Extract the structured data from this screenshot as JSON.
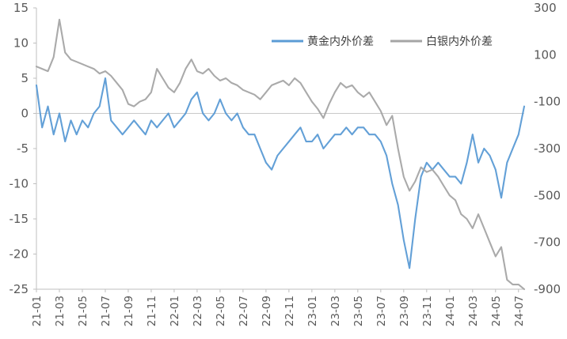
{
  "chart_data": {
    "type": "line",
    "title": "",
    "legend_position": "top-right",
    "x_tick_labels": [
      "21-01",
      "21-03",
      "21-05",
      "21-07",
      "21-09",
      "21-11",
      "22-01",
      "22-03",
      "22-05",
      "22-07",
      "22-09",
      "22-11",
      "23-01",
      "23-03",
      "23-05",
      "23-07",
      "23-09",
      "23-11",
      "24-01",
      "24-03",
      "24-05",
      "24-07"
    ],
    "y_left": {
      "ticks": [
        "15",
        "10",
        "5",
        "0",
        "-5",
        "-10",
        "-15",
        "-20",
        "-25"
      ],
      "ylim": [
        -25,
        15
      ]
    },
    "y_right": {
      "ticks": [
        "300",
        "100",
        "-100",
        "-300",
        "-500",
        "-700",
        "-900"
      ],
      "ylim": [
        -900,
        300
      ]
    },
    "zero_line": true,
    "series": [
      {
        "name": "黄金内外价差",
        "axis": "left",
        "color": "#5B9BD5",
        "points": [
          [
            "21-01",
            4
          ],
          [
            "21-01.5",
            -2
          ],
          [
            "21-02",
            1
          ],
          [
            "21-02.5",
            -3
          ],
          [
            "21-03",
            0
          ],
          [
            "21-03.5",
            -4
          ],
          [
            "21-04",
            -1
          ],
          [
            "21-04.5",
            -3
          ],
          [
            "21-05",
            -1
          ],
          [
            "21-05.5",
            -2
          ],
          [
            "21-06",
            0
          ],
          [
            "21-06.5",
            1
          ],
          [
            "21-07",
            5
          ],
          [
            "21-07.5",
            -1
          ],
          [
            "21-08",
            -2
          ],
          [
            "21-08.5",
            -3
          ],
          [
            "21-09",
            -2
          ],
          [
            "21-09.5",
            -1
          ],
          [
            "21-10",
            -2
          ],
          [
            "21-10.5",
            -3
          ],
          [
            "21-11",
            -1
          ],
          [
            "21-11.5",
            -2
          ],
          [
            "21-12",
            -1
          ],
          [
            "21-12.5",
            0
          ],
          [
            "22-01",
            -2
          ],
          [
            "22-01.5",
            -1
          ],
          [
            "22-02",
            0
          ],
          [
            "22-02.5",
            2
          ],
          [
            "22-03",
            3
          ],
          [
            "22-03.5",
            0
          ],
          [
            "22-04",
            -1
          ],
          [
            "22-04.5",
            0
          ],
          [
            "22-05",
            2
          ],
          [
            "22-05.5",
            0
          ],
          [
            "22-06",
            -1
          ],
          [
            "22-06.5",
            0
          ],
          [
            "22-07",
            -2
          ],
          [
            "22-07.5",
            -3
          ],
          [
            "22-08",
            -3
          ],
          [
            "22-08.5",
            -5
          ],
          [
            "22-09",
            -7
          ],
          [
            "22-09.5",
            -8
          ],
          [
            "22-10",
            -6
          ],
          [
            "22-10.5",
            -5
          ],
          [
            "22-11",
            -4
          ],
          [
            "22-11.5",
            -3
          ],
          [
            "22-12",
            -2
          ],
          [
            "22-12.5",
            -4
          ],
          [
            "23-01",
            -4
          ],
          [
            "23-01.5",
            -3
          ],
          [
            "23-02",
            -5
          ],
          [
            "23-02.5",
            -4
          ],
          [
            "23-03",
            -3
          ],
          [
            "23-03.5",
            -3
          ],
          [
            "23-04",
            -2
          ],
          [
            "23-04.5",
            -3
          ],
          [
            "23-05",
            -2
          ],
          [
            "23-05.5",
            -2
          ],
          [
            "23-06",
            -3
          ],
          [
            "23-06.5",
            -3
          ],
          [
            "23-07",
            -4
          ],
          [
            "23-07.5",
            -6
          ],
          [
            "23-08",
            -10
          ],
          [
            "23-08.5",
            -13
          ],
          [
            "23-09",
            -18
          ],
          [
            "23-09.5",
            -22
          ],
          [
            "23-10",
            -15
          ],
          [
            "23-10.5",
            -9
          ],
          [
            "23-11",
            -7
          ],
          [
            "23-11.5",
            -8
          ],
          [
            "23-12",
            -7
          ],
          [
            "23-12.5",
            -8
          ],
          [
            "24-01",
            -9
          ],
          [
            "24-01.5",
            -9
          ],
          [
            "24-02",
            -10
          ],
          [
            "24-02.5",
            -7
          ],
          [
            "24-03",
            -3
          ],
          [
            "24-03.5",
            -7
          ],
          [
            "24-04",
            -5
          ],
          [
            "24-04.5",
            -6
          ],
          [
            "24-05",
            -8
          ],
          [
            "24-05.5",
            -12
          ],
          [
            "24-06",
            -7
          ],
          [
            "24-06.5",
            -5
          ],
          [
            "24-07",
            -3
          ],
          [
            "24-07.5",
            1
          ]
        ]
      },
      {
        "name": "白银内外价差",
        "axis": "right",
        "color": "#A5A5A5",
        "points": [
          [
            "21-01",
            50
          ],
          [
            "21-01.5",
            40
          ],
          [
            "21-02",
            30
          ],
          [
            "21-02.5",
            90
          ],
          [
            "21-03",
            250
          ],
          [
            "21-03.5",
            110
          ],
          [
            "21-04",
            80
          ],
          [
            "21-04.5",
            70
          ],
          [
            "21-05",
            60
          ],
          [
            "21-05.5",
            50
          ],
          [
            "21-06",
            40
          ],
          [
            "21-06.5",
            20
          ],
          [
            "21-07",
            30
          ],
          [
            "21-07.5",
            10
          ],
          [
            "21-08",
            -20
          ],
          [
            "21-08.5",
            -50
          ],
          [
            "21-09",
            -110
          ],
          [
            "21-09.5",
            -120
          ],
          [
            "21-10",
            -100
          ],
          [
            "21-10.5",
            -90
          ],
          [
            "21-11",
            -60
          ],
          [
            "21-11.5",
            40
          ],
          [
            "21-12",
            0
          ],
          [
            "21-12.5",
            -40
          ],
          [
            "22-01",
            -60
          ],
          [
            "22-01.5",
            -20
          ],
          [
            "22-02",
            40
          ],
          [
            "22-02.5",
            80
          ],
          [
            "22-03",
            30
          ],
          [
            "22-03.5",
            20
          ],
          [
            "22-04",
            40
          ],
          [
            "22-04.5",
            10
          ],
          [
            "22-05",
            -10
          ],
          [
            "22-05.5",
            0
          ],
          [
            "22-06",
            -20
          ],
          [
            "22-06.5",
            -30
          ],
          [
            "22-07",
            -50
          ],
          [
            "22-07.5",
            -60
          ],
          [
            "22-08",
            -70
          ],
          [
            "22-08.5",
            -90
          ],
          [
            "22-09",
            -60
          ],
          [
            "22-09.5",
            -30
          ],
          [
            "22-10",
            -20
          ],
          [
            "22-10.5",
            -10
          ],
          [
            "22-11",
            -30
          ],
          [
            "22-11.5",
            0
          ],
          [
            "22-12",
            -20
          ],
          [
            "22-12.5",
            -60
          ],
          [
            "23-01",
            -100
          ],
          [
            "23-01.5",
            -130
          ],
          [
            "23-02",
            -170
          ],
          [
            "23-02.5",
            -110
          ],
          [
            "23-03",
            -60
          ],
          [
            "23-03.5",
            -20
          ],
          [
            "23-04",
            -40
          ],
          [
            "23-04.5",
            -30
          ],
          [
            "23-05",
            -60
          ],
          [
            "23-05.5",
            -80
          ],
          [
            "23-06",
            -60
          ],
          [
            "23-06.5",
            -100
          ],
          [
            "23-07",
            -140
          ],
          [
            "23-07.5",
            -200
          ],
          [
            "23-08",
            -160
          ],
          [
            "23-08.5",
            -300
          ],
          [
            "23-09",
            -420
          ],
          [
            "23-09.5",
            -480
          ],
          [
            "23-10",
            -440
          ],
          [
            "23-10.5",
            -380
          ],
          [
            "23-11",
            -400
          ],
          [
            "23-11.5",
            -390
          ],
          [
            "23-12",
            -420
          ],
          [
            "23-12.5",
            -460
          ],
          [
            "24-01",
            -500
          ],
          [
            "24-01.5",
            -520
          ],
          [
            "24-02",
            -580
          ],
          [
            "24-02.5",
            -600
          ],
          [
            "24-03",
            -640
          ],
          [
            "24-03.5",
            -580
          ],
          [
            "24-04",
            -640
          ],
          [
            "24-04.5",
            -700
          ],
          [
            "24-05",
            -760
          ],
          [
            "24-05.5",
            -720
          ],
          [
            "24-06",
            -860
          ],
          [
            "24-06.5",
            -880
          ],
          [
            "24-07",
            -880
          ],
          [
            "24-07.5",
            -900
          ]
        ]
      }
    ]
  }
}
